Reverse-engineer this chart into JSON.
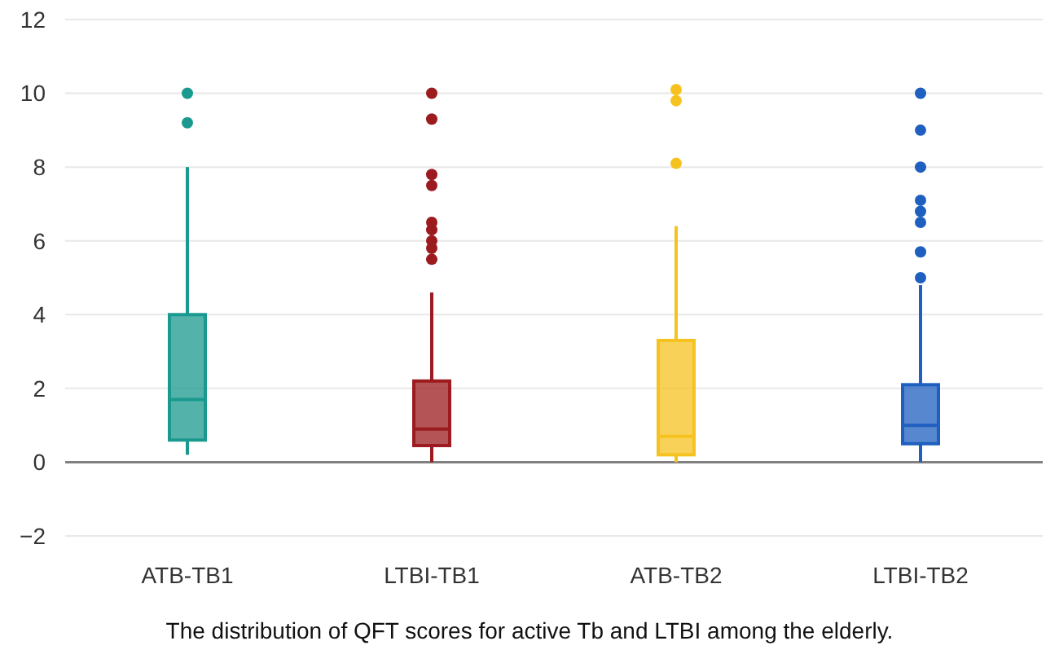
{
  "chart_data": {
    "type": "box",
    "categories": [
      "ATB-TB1",
      "LTBI-TB1",
      "ATB-TB2",
      "LTBI-TB2"
    ],
    "colors": [
      "#1a9a8f",
      "#9b1b1f",
      "#f5c220",
      "#1f5fbf"
    ],
    "boxes": [
      {
        "low": 0.2,
        "q1": 0.6,
        "median": 1.7,
        "q3": 4.0,
        "high": 8.0,
        "outliers": [
          9.2,
          10
        ]
      },
      {
        "low": 0,
        "q1": 0.45,
        "median": 0.9,
        "q3": 2.2,
        "high": 4.6,
        "outliers": [
          5.5,
          5.8,
          6.0,
          6.3,
          6.5,
          7.5,
          7.8,
          9.3,
          10
        ]
      },
      {
        "low": 0,
        "q1": 0.2,
        "median": 0.7,
        "q3": 3.3,
        "high": 6.4,
        "outliers": [
          8.1,
          9.8,
          10.1
        ]
      },
      {
        "low": 0,
        "q1": 0.5,
        "median": 1.0,
        "q3": 2.1,
        "high": 4.8,
        "outliers": [
          5.0,
          5.7,
          6.5,
          6.8,
          7.1,
          8.0,
          9.0,
          10.0
        ]
      }
    ],
    "ylim": [
      -2,
      12
    ],
    "yticks": [
      -2,
      0,
      2,
      4,
      6,
      8,
      10,
      12
    ],
    "grid": "y",
    "ref_lines": [
      {
        "axis": "y",
        "value": 0,
        "color": "#808080"
      }
    ],
    "annotations": [
      "The distribution of QFT scores for active Tb and LTBI among the elderly."
    ]
  }
}
